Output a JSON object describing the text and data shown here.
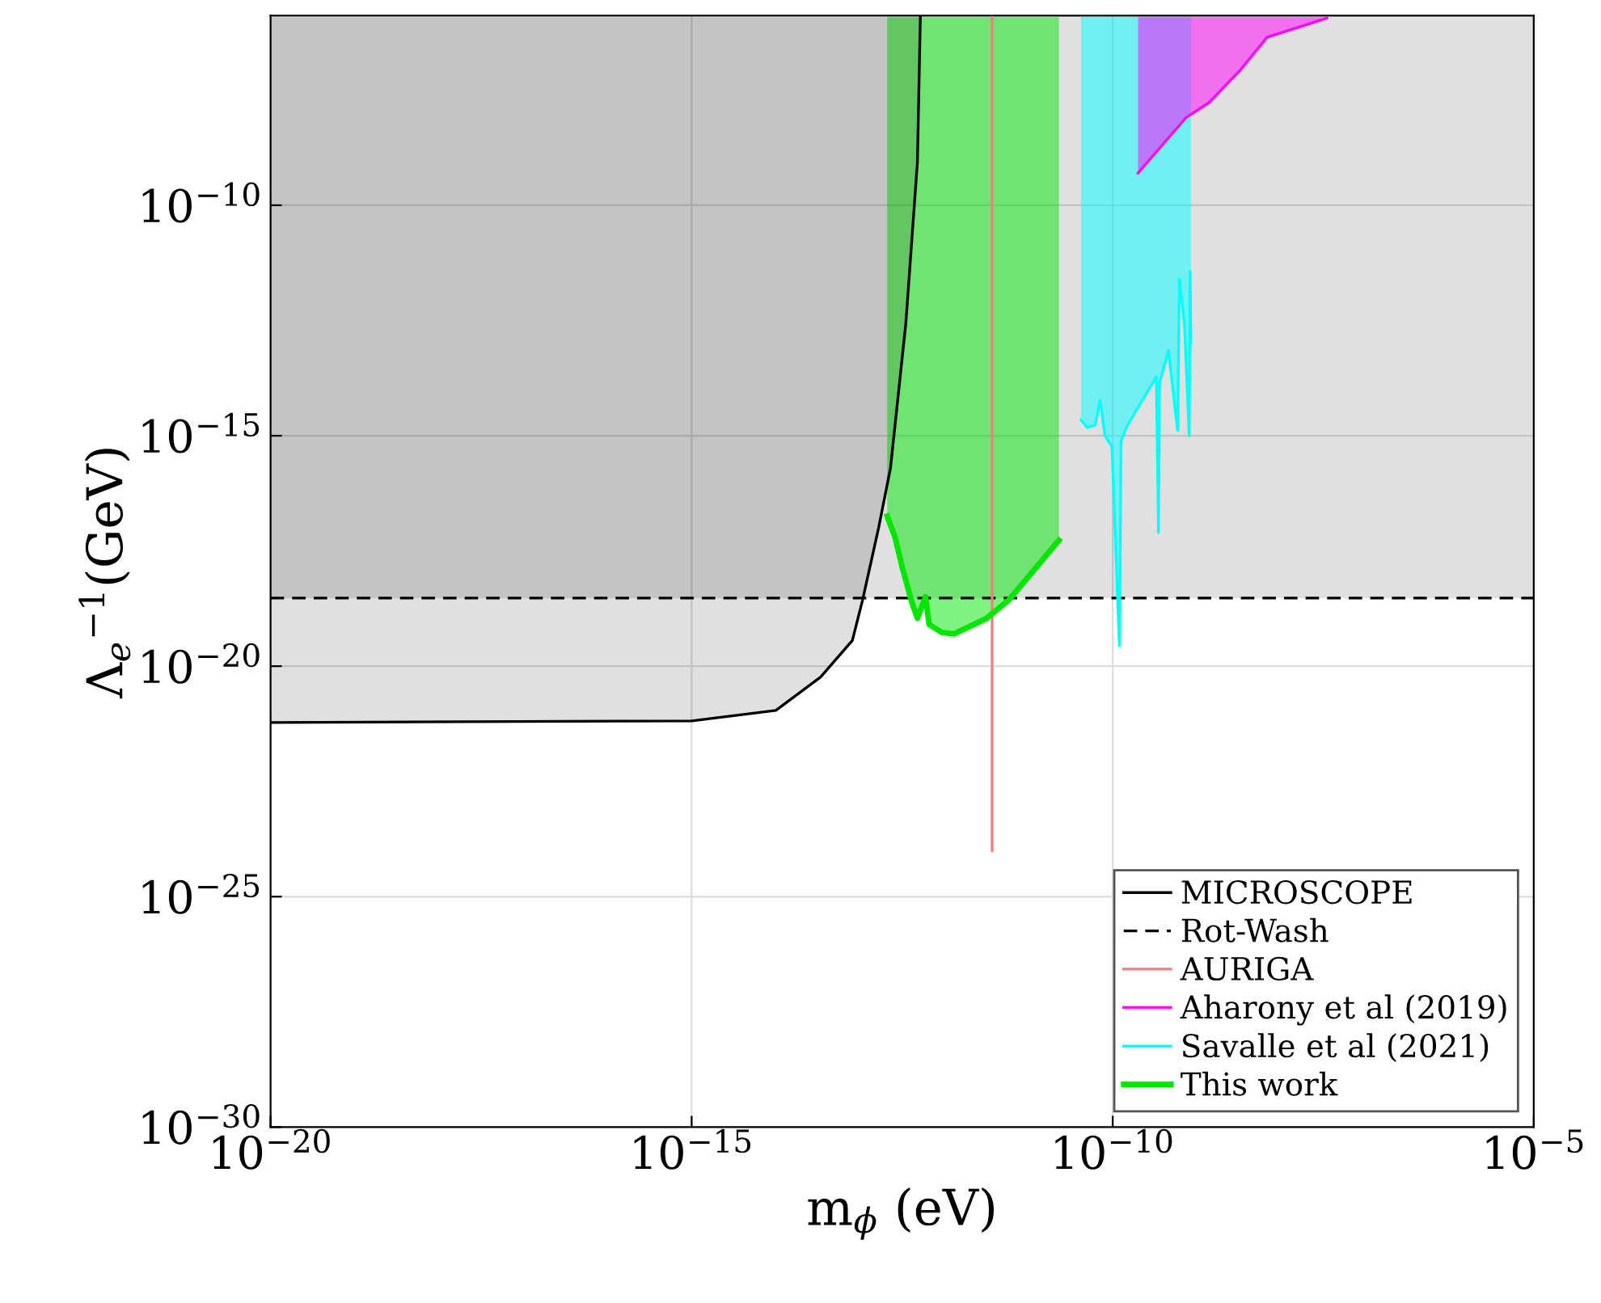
{
  "chart_data": {
    "type": "line",
    "xlabel": "m$_{ϕ}$ (eV)",
    "ylabel": "Λ$_{e}$$^{−1}$(GeV)",
    "log": "xy",
    "xlim": [
      1e-20,
      1e-05
    ],
    "xticks": [
      {
        "value": 1e-20,
        "label": "10$^{−20}$"
      },
      {
        "value": 1e-15,
        "label": "10$^{−15}$"
      },
      {
        "value": 1e-10,
        "label": "10$^{−10}$"
      },
      {
        "value": 1e-05,
        "label": "10$^{−5}$"
      }
    ],
    "ylim": [
      1e-30,
      1.3e-06
    ],
    "yticks": [
      {
        "value": 1e-30,
        "label": "10$^{−30}$"
      },
      {
        "value": 1e-25,
        "label": "10$^{−25}$"
      },
      {
        "value": 1e-20,
        "label": "10$^{−20}$"
      },
      {
        "value": 1e-15,
        "label": "10$^{−15}$"
      },
      {
        "value": 1e-10,
        "label": "10$^{−10}$"
      }
    ],
    "grid": true,
    "legend": "bottom right",
    "bands": [
      {
        "axis": "y",
        "from": 3e-19,
        "to": 1.2e-06,
        "color": "#000000"
      }
    ],
    "series": [
      {
        "name": "MICROSCOPE",
        "color": "#000000",
        "line_style": "solid",
        "x": [
          1e-20,
          1e-15,
          1e-14,
          3.4e-14,
          8.1e-14,
          1.07e-13,
          1.66e-13,
          2.3e-13,
          3.5e-13,
          4.8e-13,
          5.2e-13
        ],
        "values": [
          6e-22,
          6.5e-22,
          1.1e-21,
          5.8e-21,
          3.6e-20,
          2.7e-19,
          1e-17,
          2e-16,
          2.8e-13,
          8.7e-10,
          1.2e-06
        ],
        "lower": [
          6e-22,
          6.5e-22,
          1.1e-21,
          5.8e-21,
          3.6e-20,
          2.7e-19,
          1e-17,
          2e-16,
          2.8e-13,
          8.7e-10,
          1.2e-06
        ],
        "upper": [
          1.2e-06,
          1.2e-06,
          1.2e-06,
          1.2e-06,
          1.2e-06,
          1.2e-06,
          1.2e-06,
          1.2e-06,
          1.2e-06,
          1.2e-06,
          1.2e-06
        ]
      },
      {
        "name": "Rot-Wash",
        "color": "#000000",
        "line_style": "dashed",
        "x": [
          1e-20,
          1e-05
        ],
        "values": [
          3e-19,
          3e-19
        ]
      },
      {
        "name": "AURIGA",
        "color": "#f08080",
        "line_style": "solid",
        "x": [
          3.7e-12,
          3.7e-12
        ],
        "values": [
          1e-24,
          1.2e-06
        ]
      },
      {
        "name": "Aharony et al (2019)",
        "color": "#ff00ff",
        "line_style": "solid",
        "x": [
          2e-10,
          7.4e-10,
          1.4e-09,
          3.3e-09,
          6.8e-09,
          3.5e-08
        ],
        "values": [
          5e-10,
          7.9e-09,
          1.7e-08,
          8.7e-08,
          4.4e-07,
          1.15e-06
        ],
        "lower": [
          5e-10,
          7.9e-09,
          1.7e-08,
          8.7e-08,
          4.4e-07,
          1.15e-06
        ],
        "upper": [
          1.2e-06,
          1.2e-06,
          1.2e-06,
          1.2e-06,
          1.2e-06,
          1.2e-06
        ]
      },
      {
        "name": "Savalle et al (2021)",
        "color": "#00ffff",
        "line_style": "solid",
        "x": [
          4.2e-11,
          5e-11,
          6.2e-11,
          7.1e-11,
          8.1e-11,
          9.8e-11,
          1.2e-10,
          1.26e-10,
          1.5e-10,
          2.3e-10,
          3.3e-10,
          3.5e-10,
          3.6e-10,
          4.6e-10,
          5.9e-10,
          6.2e-10,
          7.1e-10,
          8.1e-10,
          8.3e-10,
          8.5e-10
        ],
        "values": [
          2.2e-15,
          1.5e-15,
          1.7e-15,
          5.9e-15,
          1e-15,
          5.8e-16,
          2.8e-20,
          7.9e-16,
          1.7e-15,
          6.3e-15,
          1.9e-14,
          7.9e-18,
          1.4e-14,
          7.1e-14,
          1.3e-15,
          2.5e-12,
          2.8e-13,
          1e-15,
          3.7e-12,
          1e-13
        ],
        "lower": [
          2.2e-15,
          1.5e-15,
          1.7e-15,
          5.9e-15,
          1e-15,
          5.8e-16,
          2.8e-20,
          7.9e-16,
          1.7e-15,
          6.3e-15,
          1.9e-14,
          7.9e-18,
          1.4e-14,
          7.1e-14,
          1.3e-15,
          2.5e-12,
          2.8e-13,
          1e-15,
          3.7e-12,
          1e-13
        ],
        "upper": [
          1.2e-06,
          1.2e-06,
          1.2e-06,
          1.2e-06,
          1.2e-06,
          1.2e-06,
          1.2e-06,
          1.2e-06,
          1.2e-06,
          1.2e-06,
          1.2e-06,
          1.2e-06,
          1.2e-06,
          1.2e-06,
          1.2e-06,
          1.2e-06,
          1.2e-06,
          1.2e-06,
          1.2e-06,
          1.2e-06
        ]
      },
      {
        "name": "This work",
        "color": "#00e600",
        "line_style": "solid",
        "x": [
          2.1e-13,
          2.6e-13,
          3.2e-13,
          4.1e-13,
          4.8e-13,
          6e-13,
          6.6e-13,
          9.3e-13,
          1.3e-12,
          3.2e-12,
          5.8e-12,
          1.2e-11,
          2.3e-11
        ],
        "values": [
          1.8e-17,
          6.3e-18,
          1.3e-18,
          2.5e-19,
          1.1e-19,
          3.2e-19,
          8.1e-20,
          5.4e-20,
          5e-20,
          1.1e-19,
          2.7e-19,
          1.3e-18,
          5.4e-18
        ],
        "lower": [
          1.8e-17,
          6.3e-18,
          1.3e-18,
          2.5e-19,
          1.1e-19,
          3.2e-19,
          8.1e-20,
          5.4e-20,
          5e-20,
          1.1e-19,
          2.7e-19,
          1.3e-18,
          5.4e-18
        ],
        "upper": [
          1.2e-06,
          1.2e-06,
          1.2e-06,
          1.2e-06,
          1.2e-06,
          1.2e-06,
          1.2e-06,
          1.2e-06,
          1.2e-06,
          1.2e-06,
          1.2e-06,
          1.2e-06,
          1.2e-06
        ]
      }
    ]
  }
}
